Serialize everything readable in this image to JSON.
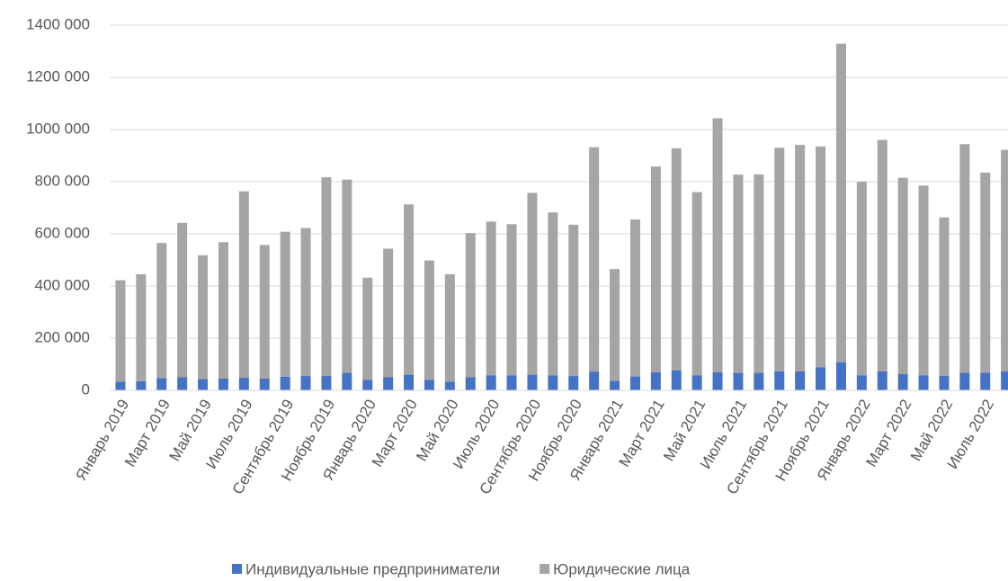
{
  "chart_data": {
    "type": "stacked_bar",
    "categories": [
      "Январь 2019",
      null,
      "Март 2019",
      null,
      "Май 2019",
      null,
      "Июль 2019",
      null,
      "Сентябрь 2019",
      null,
      "Ноябрь 2019",
      null,
      "Январь 2020",
      null,
      "Март 2020",
      null,
      "Май 2020",
      null,
      "Июль 2020",
      null,
      "Сентябрь 2020",
      null,
      "Ноябрь 2020",
      null,
      "Январь 2021",
      null,
      "Март 2021",
      null,
      "Май 2021",
      null,
      "Июль 2021",
      null,
      "Сентябрь 2021",
      null,
      "Ноябрь 2021",
      null,
      "Январь 2022",
      null,
      "Март 2022",
      null,
      "Май 2022",
      null,
      "Июль 2022",
      null
    ],
    "series": [
      {
        "name": "Индивидуальные предприниматели",
        "color": "#4472c4",
        "values": [
          33000,
          35000,
          47000,
          50000,
          43000,
          45000,
          48000,
          45000,
          52000,
          55000,
          55000,
          67000,
          40000,
          50000,
          60000,
          40000,
          33000,
          50000,
          58000,
          57000,
          60000,
          57000,
          55000,
          72000,
          37000,
          53000,
          70000,
          77000,
          58000,
          70000,
          67000,
          67000,
          73000,
          73000,
          88000,
          108000,
          58000,
          73000,
          62000,
          58000,
          55000,
          67000,
          68000,
          73000
        ]
      },
      {
        "name": "Юридические лица",
        "color": "#a5a5a5",
        "values": [
          389000,
          410000,
          518000,
          592000,
          475000,
          523000,
          715000,
          512000,
          556000,
          567000,
          762000,
          741000,
          392000,
          493000,
          653000,
          458000,
          412000,
          553000,
          589000,
          580000,
          697000,
          625000,
          580000,
          860000,
          428000,
          602000,
          788000,
          851000,
          702000,
          973000,
          760000,
          761000,
          857000,
          868000,
          847000,
          1221000,
          742000,
          887000,
          753000,
          727000,
          608000,
          877000,
          767000,
          849000
        ]
      }
    ],
    "ylim": [
      0,
      1400000
    ],
    "yticks": [
      0,
      {
        "value": 200000,
        "label": "200 000"
      },
      {
        "value": 400000,
        "label": "400 000"
      },
      {
        "value": 600000,
        "label": "600 000"
      },
      {
        "value": 800000,
        "label": "800 000"
      },
      {
        "value": 1000000,
        "label": "1000 000"
      },
      {
        "value": 1200000,
        "label": "1200 000"
      },
      {
        "value": 1400000,
        "label": "1400 000"
      }
    ],
    "grid": true,
    "legend": "bottom"
  }
}
